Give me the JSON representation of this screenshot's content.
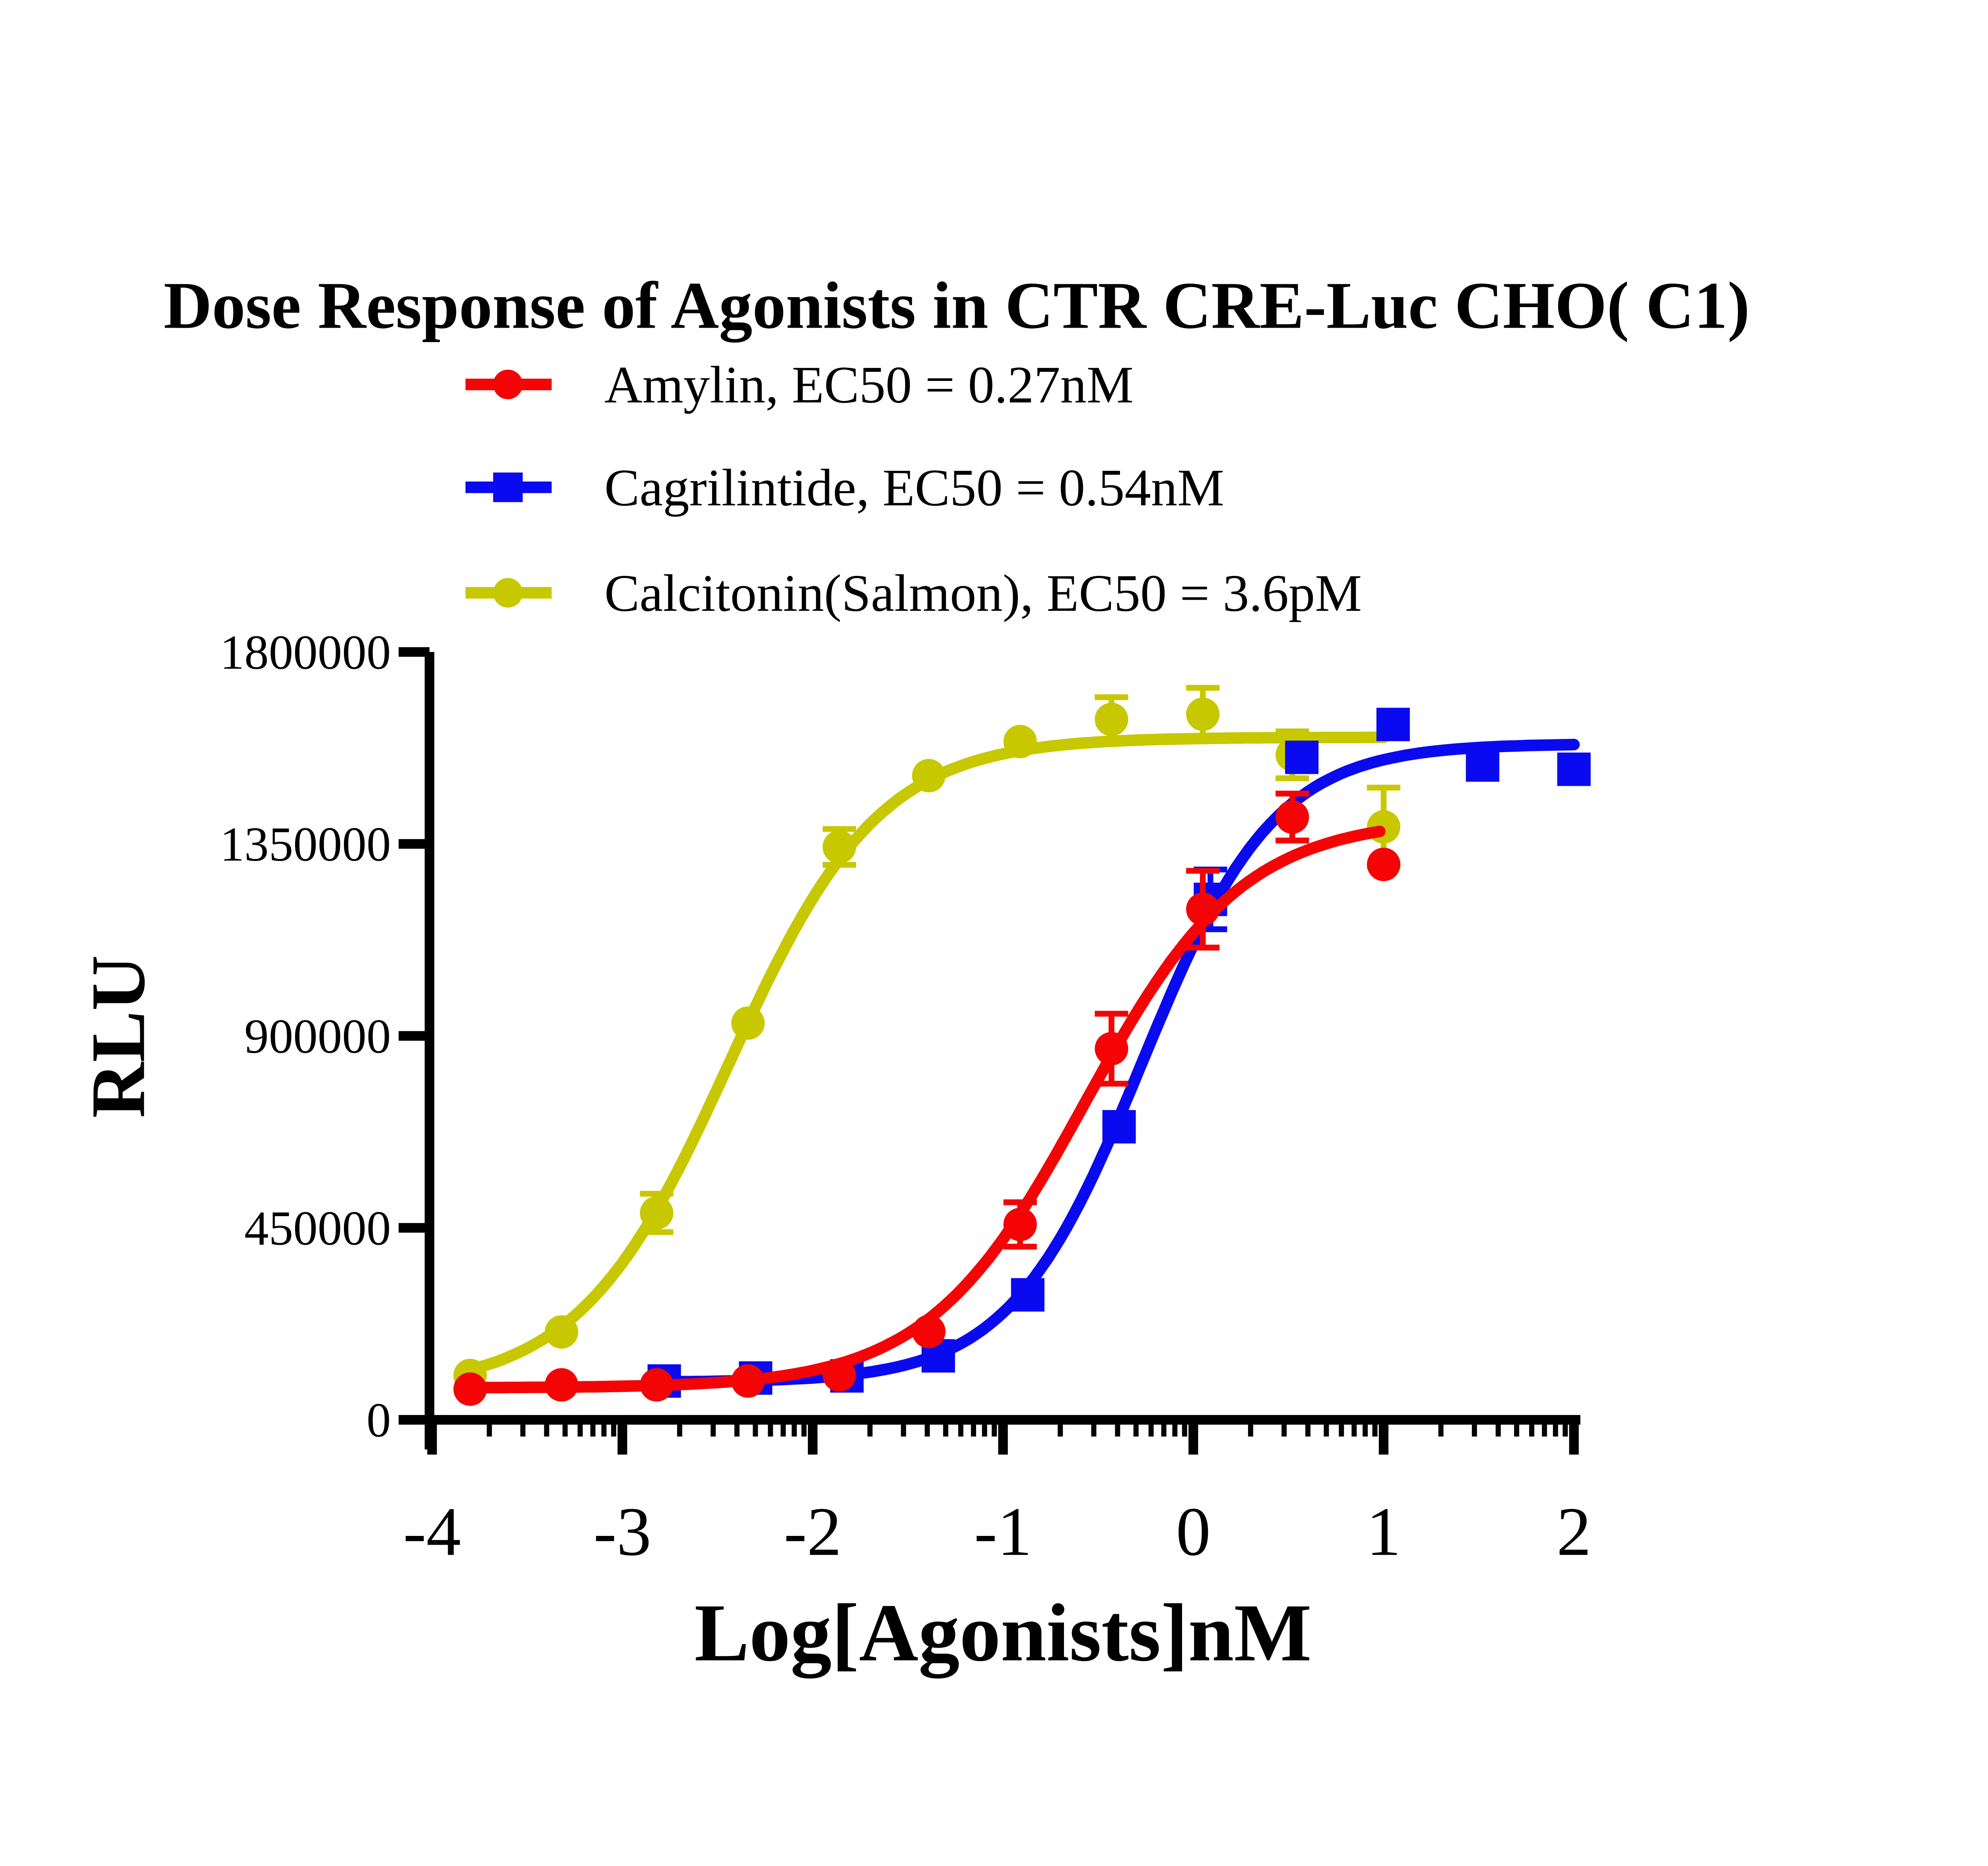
{
  "title": "Dose Response of Agonists in CTR CRE-Luc CHO( C1)",
  "chart_data": {
    "type": "scatter",
    "title": "Dose Response of Agonists in CTR CRE-Luc CHO( C1)",
    "xlabel": "Log[Agonists]nM",
    "ylabel": "RLU",
    "xlim": [
      -4,
      2
    ],
    "ylim": [
      0,
      1800000
    ],
    "x_ticks": [
      -4,
      -3,
      -2,
      -1,
      0,
      1,
      2
    ],
    "y_ticks": [
      0,
      450000,
      900000,
      1350000,
      1800000
    ],
    "grid": false,
    "legend_position": "top-left",
    "minor_ticks": "log-decade",
    "draw_order": [
      2,
      1,
      0
    ],
    "series": [
      {
        "name": "Amylin",
        "legend_label": "Amylin, EC50 = 0.27nM",
        "ec50": "0.27nM",
        "color": "#F40404",
        "marker": "circle",
        "x": [
          -3.8,
          -3.32,
          -2.82,
          -2.34,
          -1.86,
          -1.39,
          -0.91,
          -0.43,
          0.05,
          0.52,
          1.0
        ],
        "y": [
          72000,
          82000,
          82000,
          91000,
          105000,
          207000,
          458000,
          870000,
          1197000,
          1413000,
          1302000
        ],
        "err": [
          0,
          0,
          0,
          0,
          0,
          0,
          52000,
          82000,
          90000,
          55000,
          0
        ],
        "fit": {
          "bottom": 75000,
          "top": 1410000,
          "logec50": -0.57,
          "hill": 1.05,
          "range": [
            -3.8,
            0.98
          ]
        }
      },
      {
        "name": "Cagrilintide",
        "legend_label": "Cagrilintide, EC50 = 0.54nM",
        "ec50": "0.54nM",
        "color": "#0A0AF0",
        "marker": "square",
        "x": [
          -2.78,
          -2.3,
          -1.82,
          -1.34,
          -0.87,
          -0.39,
          0.09,
          0.57,
          1.05,
          1.52,
          2.0
        ],
        "y": [
          91000,
          98000,
          103000,
          150000,
          293000,
          687000,
          1220000,
          1553000,
          1630000,
          1535000,
          1525000
        ],
        "err": [
          0,
          0,
          0,
          0,
          0,
          0,
          70000,
          0,
          0,
          0,
          0
        ],
        "fit": {
          "bottom": 88000,
          "top": 1585000,
          "logec50": -0.27,
          "hill": 1.25,
          "range": [
            -2.78,
            2.0
          ]
        }
      },
      {
        "name": "Calcitonin(Salmon)",
        "legend_label": "Calcitonin(Salmon), EC50 = 3.6pM",
        "ec50": "3.6pM",
        "color": "#C8C800",
        "marker": "circle",
        "x": [
          -3.8,
          -3.32,
          -2.82,
          -2.34,
          -1.86,
          -1.39,
          -0.91,
          -0.43,
          0.05,
          0.52,
          1.0
        ],
        "y": [
          104000,
          206000,
          485000,
          930000,
          1343000,
          1510000,
          1590000,
          1642000,
          1654000,
          1559000,
          1390000
        ],
        "err": [
          0,
          0,
          45000,
          0,
          42000,
          0,
          0,
          52000,
          62000,
          55000,
          92000
        ],
        "fit": {
          "bottom": 70000,
          "top": 1600000,
          "logec50": -2.44,
          "hill": 1.1,
          "range": [
            -3.8,
            1.0
          ]
        }
      }
    ]
  }
}
